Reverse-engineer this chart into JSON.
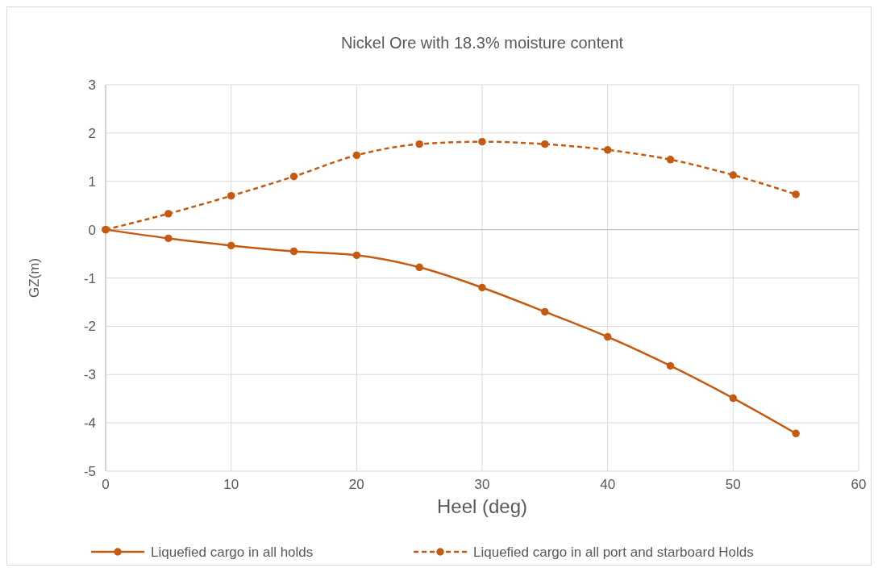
{
  "chart_data": {
    "type": "line",
    "title": "Nickel Ore with 18.3% moisture content",
    "xlabel": "Heel (deg)",
    "ylabel": "GZ(m)",
    "x": [
      0,
      5,
      10,
      15,
      20,
      25,
      30,
      35,
      40,
      45,
      50,
      55
    ],
    "xlim": [
      0,
      60
    ],
    "xticks": [
      0,
      10,
      20,
      30,
      40,
      50,
      60
    ],
    "ylim": [
      -5,
      3
    ],
    "yticks": [
      -5,
      -4,
      -3,
      -2,
      -1,
      0,
      1,
      2,
      3
    ],
    "grid": true,
    "legend": "bottom",
    "marker": "circle",
    "series": [
      {
        "name": "Liquefied cargo in all holds",
        "color": "#c55a11",
        "line_style": "solid",
        "values": [
          0,
          -0.18,
          -0.33,
          -0.45,
          -0.53,
          -0.78,
          -1.2,
          -1.7,
          -2.22,
          -2.82,
          -3.49,
          -4.22
        ]
      },
      {
        "name": "Liquefied cargo in all port and starboard Holds",
        "color": "#c55a11",
        "line_style": "dashed",
        "values": [
          0,
          0.33,
          0.7,
          1.1,
          1.54,
          1.77,
          1.82,
          1.77,
          1.65,
          1.45,
          1.13,
          0.73
        ]
      }
    ]
  }
}
